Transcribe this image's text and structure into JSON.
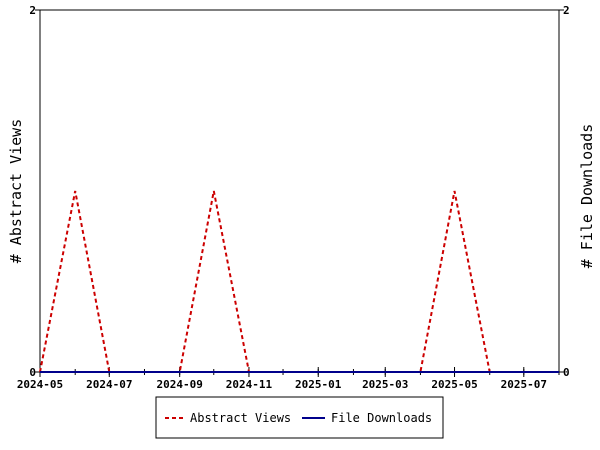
{
  "chart_data": {
    "type": "line",
    "x_label_left": "# Abstract Views",
    "y_label_right": "# File Downloads",
    "x_ticks": [
      "2024-05",
      "2024-07",
      "2024-09",
      "2024-11",
      "2025-01",
      "2025-03",
      "2025-05",
      "2025-07"
    ],
    "x_range": [
      "2024-05-01",
      "2025-08-01"
    ],
    "y_left_range": [
      0,
      2
    ],
    "y_right_range": [
      0,
      2
    ],
    "y_left_ticks": [
      "0",
      "2"
    ],
    "y_right_ticks": [
      "0",
      "2"
    ],
    "grid": false,
    "legend_position": "bottom",
    "series": [
      {
        "name": "Abstract Views",
        "color": "#cc0000",
        "style": "dashed",
        "axis": "left",
        "points": [
          {
            "x": "2024-05-01",
            "y": 0
          },
          {
            "x": "2024-06-01",
            "y": 1
          },
          {
            "x": "2024-07-01",
            "y": 0
          },
          {
            "x": "2024-09-01",
            "y": 0
          },
          {
            "x": "2024-10-01",
            "y": 1
          },
          {
            "x": "2024-11-01",
            "y": 0
          },
          {
            "x": "2025-04-01",
            "y": 0
          },
          {
            "x": "2025-05-01",
            "y": 1
          },
          {
            "x": "2025-06-01",
            "y": 0
          },
          {
            "x": "2025-08-01",
            "y": 0
          }
        ]
      },
      {
        "name": "File Downloads",
        "color": "#00008b",
        "style": "solid",
        "axis": "right",
        "points": [
          {
            "x": "2024-05-01",
            "y": 0
          },
          {
            "x": "2025-08-01",
            "y": 0
          }
        ]
      }
    ]
  }
}
